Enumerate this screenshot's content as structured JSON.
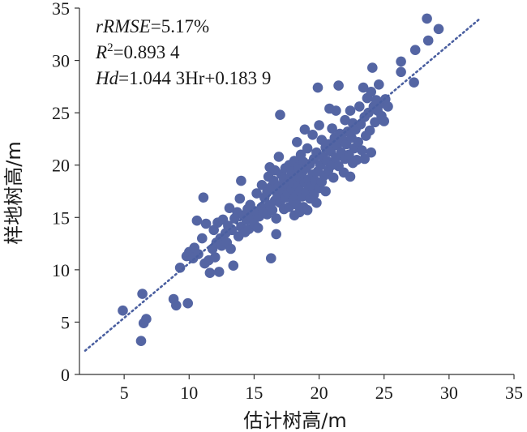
{
  "chart_data": {
    "type": "scatter",
    "xlabel": "估计树高/m",
    "ylabel": "样地树高/m",
    "xlim": [
      0,
      35
    ],
    "ylim": [
      0,
      35
    ],
    "xticks": [
      5,
      10,
      15,
      20,
      25,
      30,
      35
    ],
    "yticks": [
      0,
      5,
      10,
      15,
      20,
      25,
      30,
      35
    ],
    "grid": false,
    "annotations": {
      "rmse_name": "rRMSE",
      "rmse_value": "=5.17%",
      "r2_name": "R",
      "r2_sup": "2",
      "r2_value": "=0.893 4",
      "eq_name": "Hd",
      "eq_value": "=1.044 3Hr+0.183 9"
    },
    "marker_color": "#5465a3",
    "fit_line": {
      "slope": 1.0443,
      "intercept": 0.1839,
      "x_range": [
        2.0,
        32.3
      ],
      "style": "dotted",
      "color": "#4a5fa0"
    },
    "points": [
      [
        4.9,
        6.1
      ],
      [
        6.3,
        3.2
      ],
      [
        6.5,
        4.9
      ],
      [
        6.4,
        7.7
      ],
      [
        6.7,
        5.3
      ],
      [
        8.8,
        7.2
      ],
      [
        9.0,
        6.6
      ],
      [
        9.9,
        6.8
      ],
      [
        9.3,
        10.2
      ],
      [
        9.8,
        11.3
      ],
      [
        10.0,
        11.7
      ],
      [
        10.3,
        11.1
      ],
      [
        10.4,
        12.1
      ],
      [
        10.6,
        14.7
      ],
      [
        10.7,
        11.5
      ],
      [
        11.0,
        13.0
      ],
      [
        11.1,
        16.9
      ],
      [
        11.2,
        10.6
      ],
      [
        11.3,
        14.4
      ],
      [
        11.5,
        10.9
      ],
      [
        11.6,
        9.7
      ],
      [
        11.8,
        12.0
      ],
      [
        11.9,
        13.8
      ],
      [
        12.0,
        11.2
      ],
      [
        12.1,
        12.6
      ],
      [
        12.2,
        14.5
      ],
      [
        12.3,
        9.8
      ],
      [
        12.4,
        13.0
      ],
      [
        12.5,
        12.3
      ],
      [
        12.6,
        14.8
      ],
      [
        12.8,
        13.5
      ],
      [
        12.9,
        12.6
      ],
      [
        13.0,
        14.2
      ],
      [
        13.1,
        15.9
      ],
      [
        13.2,
        12.0
      ],
      [
        13.3,
        13.8
      ],
      [
        13.4,
        10.4
      ],
      [
        13.5,
        14.9
      ],
      [
        13.7,
        15.5
      ],
      [
        13.8,
        13.2
      ],
      [
        13.9,
        16.8
      ],
      [
        14.0,
        18.5
      ],
      [
        14.0,
        14.1
      ],
      [
        14.2,
        15.2
      ],
      [
        14.3,
        13.6
      ],
      [
        14.4,
        14.8
      ],
      [
        14.5,
        15.8
      ],
      [
        14.6,
        13.9
      ],
      [
        14.7,
        16.2
      ],
      [
        14.8,
        15.0
      ],
      [
        15.0,
        14.4
      ],
      [
        15.1,
        15.6
      ],
      [
        15.2,
        17.3
      ],
      [
        15.3,
        14.0
      ],
      [
        15.4,
        15.1
      ],
      [
        15.6,
        16.0
      ],
      [
        15.6,
        18.1
      ],
      [
        15.7,
        15.5
      ],
      [
        15.8,
        16.9
      ],
      [
        16.0,
        15.3
      ],
      [
        16.0,
        17.4
      ],
      [
        16.1,
        18.9
      ],
      [
        16.2,
        16.2
      ],
      [
        16.2,
        19.8
      ],
      [
        16.3,
        11.1
      ],
      [
        16.3,
        17.9
      ],
      [
        16.4,
        15.7
      ],
      [
        16.5,
        18.5
      ],
      [
        16.6,
        16.6
      ],
      [
        16.6,
        19.5
      ],
      [
        16.7,
        13.4
      ],
      [
        16.7,
        14.9
      ],
      [
        16.8,
        17.2
      ],
      [
        16.9,
        18.0
      ],
      [
        16.9,
        20.8
      ],
      [
        17.0,
        16.4
      ],
      [
        17.0,
        24.8
      ],
      [
        17.1,
        19.1
      ],
      [
        17.2,
        17.6
      ],
      [
        17.3,
        15.8
      ],
      [
        17.3,
        18.6
      ],
      [
        17.4,
        16.9
      ],
      [
        17.4,
        19.7
      ],
      [
        17.5,
        18.2
      ],
      [
        17.6,
        17.3
      ],
      [
        17.7,
        16.0
      ],
      [
        17.7,
        20.0
      ],
      [
        17.8,
        18.9
      ],
      [
        17.9,
        17.7
      ],
      [
        17.9,
        19.4
      ],
      [
        18.0,
        16.6
      ],
      [
        18.0,
        18.3
      ],
      [
        18.1,
        15.2
      ],
      [
        18.1,
        20.4
      ],
      [
        18.2,
        17.0
      ],
      [
        18.2,
        19.0
      ],
      [
        18.3,
        16.2
      ],
      [
        18.3,
        22.2
      ],
      [
        18.4,
        18.0
      ],
      [
        18.4,
        19.8
      ],
      [
        18.5,
        15.5
      ],
      [
        18.5,
        17.5
      ],
      [
        18.6,
        18.7
      ],
      [
        18.6,
        21.0
      ],
      [
        18.7,
        17.0
      ],
      [
        18.7,
        19.3
      ],
      [
        18.8,
        16.0
      ],
      [
        18.8,
        20.3
      ],
      [
        18.9,
        18.3
      ],
      [
        18.9,
        23.4
      ],
      [
        19.0,
        17.4
      ],
      [
        19.0,
        19.7
      ],
      [
        19.1,
        15.7
      ],
      [
        19.1,
        21.6
      ],
      [
        19.2,
        18.6
      ],
      [
        19.3,
        16.8
      ],
      [
        19.3,
        20.1
      ],
      [
        19.4,
        18.0
      ],
      [
        19.5,
        19.1
      ],
      [
        19.5,
        22.9
      ],
      [
        19.6,
        17.2
      ],
      [
        19.6,
        20.6
      ],
      [
        19.7,
        18.5
      ],
      [
        19.8,
        16.4
      ],
      [
        19.8,
        21.2
      ],
      [
        19.9,
        19.4
      ],
      [
        19.9,
        27.4
      ],
      [
        20.0,
        17.8
      ],
      [
        20.0,
        23.8
      ],
      [
        20.1,
        20.0
      ],
      [
        20.2,
        18.4
      ],
      [
        20.2,
        22.4
      ],
      [
        20.3,
        20.8
      ],
      [
        20.4,
        19.0
      ],
      [
        20.5,
        21.7
      ],
      [
        20.5,
        17.5
      ],
      [
        20.6,
        20.4
      ],
      [
        20.7,
        22.0
      ],
      [
        20.7,
        19.5
      ],
      [
        20.8,
        25.4
      ],
      [
        20.9,
        21.3
      ],
      [
        21.0,
        20.0
      ],
      [
        21.0,
        23.5
      ],
      [
        21.1,
        18.8
      ],
      [
        21.2,
        22.6
      ],
      [
        21.3,
        20.7
      ],
      [
        21.3,
        25.2
      ],
      [
        21.4,
        21.9
      ],
      [
        21.5,
        19.9
      ],
      [
        21.5,
        27.6
      ],
      [
        21.6,
        23.0
      ],
      [
        21.7,
        21.2
      ],
      [
        21.8,
        22.4
      ],
      [
        21.9,
        19.3
      ],
      [
        22.0,
        20.6
      ],
      [
        22.0,
        24.3
      ],
      [
        22.1,
        22.0
      ],
      [
        22.2,
        23.2
      ],
      [
        22.3,
        21.0
      ],
      [
        22.4,
        18.9
      ],
      [
        22.4,
        25.2
      ],
      [
        22.5,
        22.6
      ],
      [
        22.6,
        20.2
      ],
      [
        22.6,
        24.0
      ],
      [
        22.7,
        21.6
      ],
      [
        22.8,
        23.4
      ],
      [
        22.9,
        20.5
      ],
      [
        23.0,
        22.2
      ],
      [
        23.1,
        25.6
      ],
      [
        23.2,
        23.9
      ],
      [
        23.3,
        21.4
      ],
      [
        23.4,
        27.4
      ],
      [
        23.5,
        20.6
      ],
      [
        23.5,
        24.6
      ],
      [
        23.6,
        22.8
      ],
      [
        23.7,
        26.4
      ],
      [
        23.8,
        25.0
      ],
      [
        23.9,
        23.3
      ],
      [
        24.0,
        21.2
      ],
      [
        24.0,
        27.0
      ],
      [
        24.1,
        29.3
      ],
      [
        24.2,
        25.6
      ],
      [
        24.3,
        24.1
      ],
      [
        24.4,
        26.2
      ],
      [
        24.5,
        25.2
      ],
      [
        24.6,
        27.7
      ],
      [
        24.8,
        24.7
      ],
      [
        24.9,
        25.9
      ],
      [
        25.0,
        24.2
      ],
      [
        25.1,
        26.3
      ],
      [
        25.3,
        25.6
      ],
      [
        26.3,
        29.9
      ],
      [
        26.3,
        28.9
      ],
      [
        27.3,
        27.9
      ],
      [
        27.4,
        31.0
      ],
      [
        28.3,
        34.0
      ],
      [
        28.4,
        31.9
      ],
      [
        29.2,
        33.0
      ]
    ]
  }
}
